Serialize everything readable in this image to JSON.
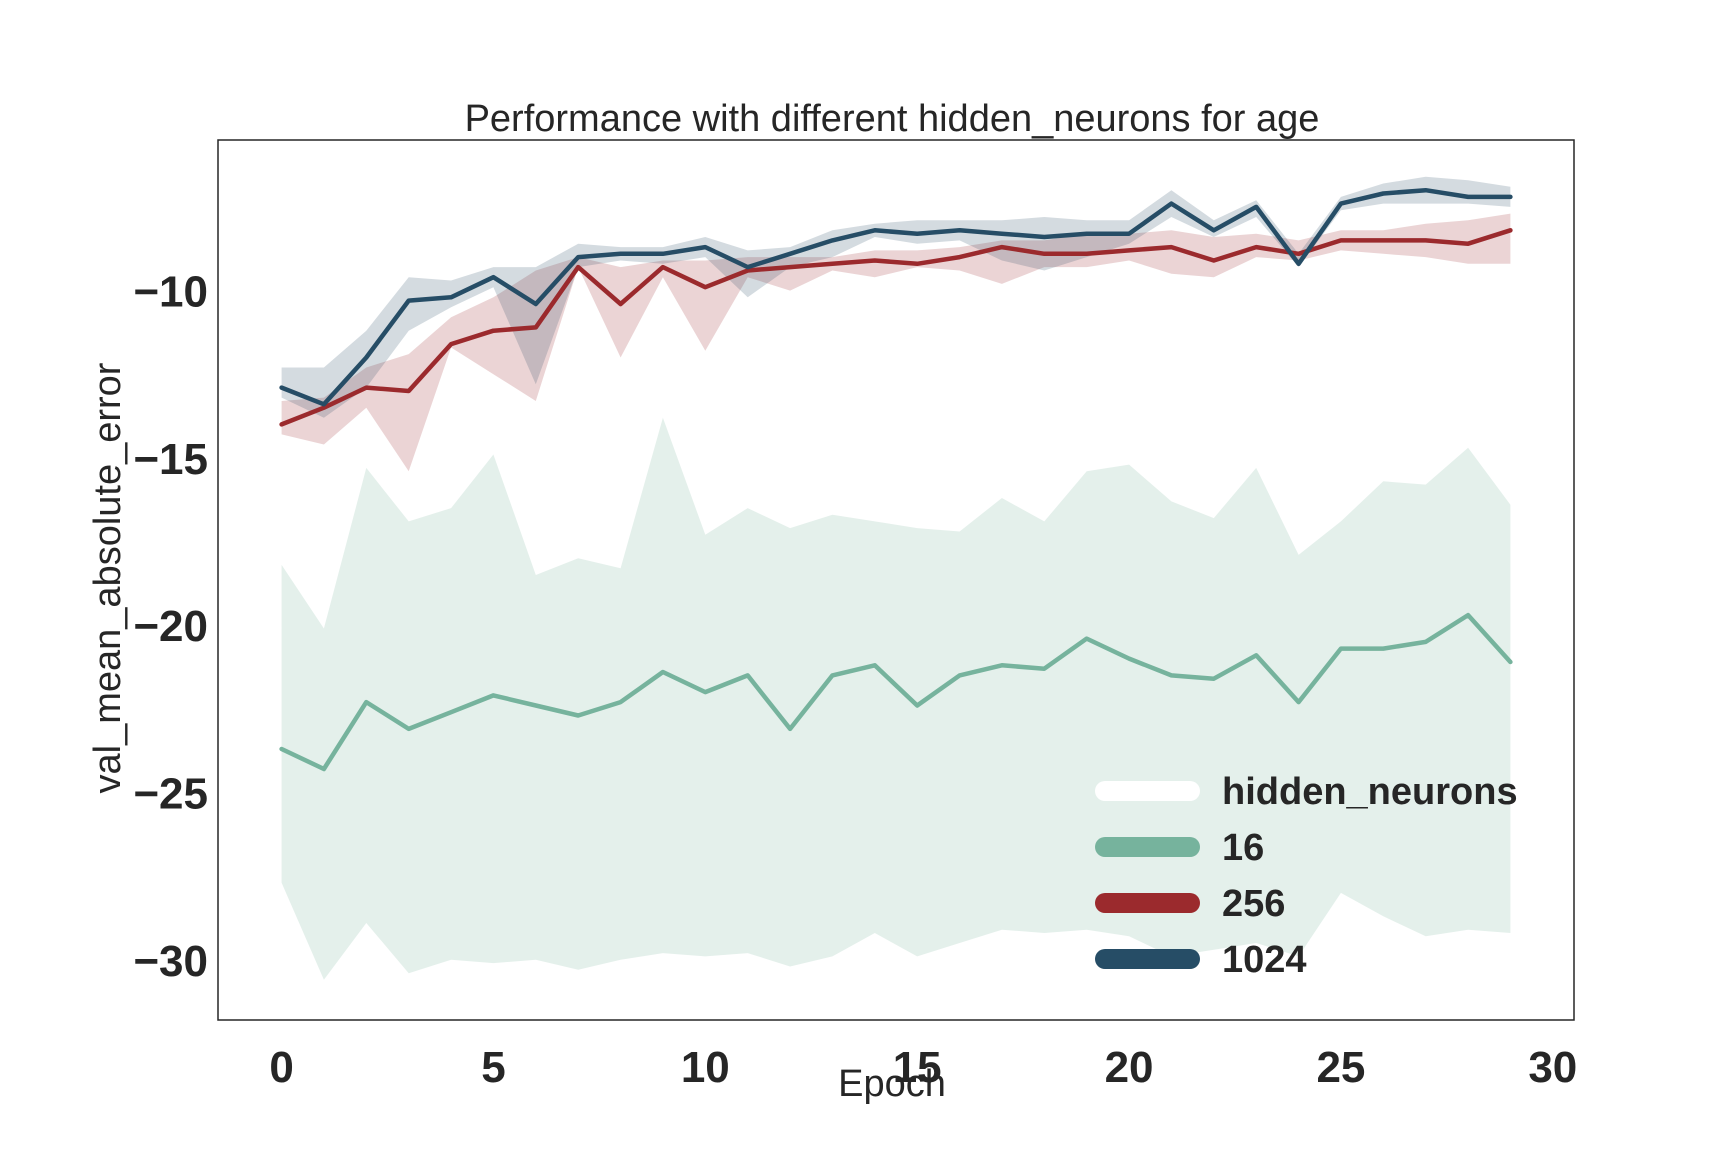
{
  "chart_data": {
    "type": "line",
    "title": "Performance with different hidden_neurons for age",
    "xlabel": "Epoch",
    "ylabel": "val_mean_absolute_error",
    "xlim": [
      -1.5,
      30.5
    ],
    "ylim": [
      -31.8,
      -5.5
    ],
    "xticks": [
      0,
      5,
      10,
      15,
      20,
      25,
      30
    ],
    "xtick_labels": [
      "0",
      "5",
      "10",
      "15",
      "20",
      "25",
      "30"
    ],
    "yticks": [
      -10,
      -15,
      -20,
      -25,
      -30
    ],
    "ytick_labels": [
      "−10",
      "−15",
      "−20",
      "−25",
      "−30"
    ],
    "grid": false,
    "legend": {
      "title": "hidden_neurons",
      "placement": "lower-right",
      "title_color": "#ffffff"
    },
    "x": [
      0,
      1,
      2,
      3,
      4,
      5,
      6,
      7,
      8,
      9,
      10,
      11,
      12,
      13,
      14,
      15,
      16,
      17,
      18,
      19,
      20,
      21,
      22,
      23,
      24,
      25,
      26,
      27,
      28,
      29
    ],
    "series": [
      {
        "name": "16",
        "color": "#76b39d",
        "values": [
          -23.7,
          -24.3,
          -22.3,
          -23.1,
          -22.6,
          -22.1,
          -22.4,
          -22.7,
          -22.3,
          -21.4,
          -22.0,
          -21.5,
          -23.1,
          -21.5,
          -21.2,
          -22.4,
          -21.5,
          -21.2,
          -21.3,
          -20.4,
          -21.0,
          -21.5,
          -21.6,
          -20.9,
          -22.3,
          -20.7,
          -20.7,
          -20.5,
          -19.7,
          -21.1
        ],
        "upper": [
          -18.2,
          -20.1,
          -15.3,
          -16.9,
          -16.5,
          -14.9,
          -18.5,
          -18.0,
          -18.3,
          -13.8,
          -17.3,
          -16.5,
          -17.1,
          -16.7,
          -16.9,
          -17.1,
          -17.2,
          -16.2,
          -16.9,
          -15.4,
          -15.2,
          -16.3,
          -16.8,
          -15.3,
          -17.9,
          -16.9,
          -15.7,
          -15.8,
          -14.7,
          -16.4
        ],
        "lower": [
          -27.7,
          -30.6,
          -28.9,
          -30.4,
          -30.0,
          -30.1,
          -30.0,
          -30.3,
          -30.0,
          -29.8,
          -29.9,
          -29.8,
          -30.2,
          -29.9,
          -29.2,
          -29.9,
          -29.5,
          -29.1,
          -29.2,
          -29.1,
          -29.3,
          -29.9,
          -29.7,
          -29.5,
          -29.9,
          -28.0,
          -28.7,
          -29.3,
          -29.1,
          -29.2
        ]
      },
      {
        "name": "256",
        "color": "#9b2a2d",
        "values": [
          -14.0,
          -13.5,
          -12.9,
          -13.0,
          -11.6,
          -11.2,
          -11.1,
          -9.3,
          -10.4,
          -9.3,
          -9.9,
          -9.4,
          -9.3,
          -9.2,
          -9.1,
          -9.2,
          -9.0,
          -8.7,
          -8.9,
          -8.9,
          -8.8,
          -8.7,
          -9.1,
          -8.7,
          -8.9,
          -8.5,
          -8.5,
          -8.5,
          -8.6,
          -8.2
        ],
        "upper": [
          -13.3,
          -13.2,
          -12.3,
          -11.9,
          -10.8,
          -10.2,
          -9.4,
          -9.0,
          -9.3,
          -9.1,
          -9.1,
          -9.0,
          -9.0,
          -9.0,
          -8.8,
          -8.8,
          -8.7,
          -8.5,
          -8.5,
          -8.3,
          -8.3,
          -8.2,
          -8.4,
          -8.3,
          -8.5,
          -8.2,
          -8.2,
          -8.0,
          -7.9,
          -7.7
        ],
        "lower": [
          -14.3,
          -14.6,
          -13.5,
          -15.4,
          -11.7,
          -12.5,
          -13.3,
          -9.3,
          -12.0,
          -9.6,
          -11.8,
          -9.6,
          -10.0,
          -9.4,
          -9.6,
          -9.3,
          -9.4,
          -9.8,
          -9.3,
          -9.3,
          -9.1,
          -9.5,
          -9.6,
          -9.0,
          -9.1,
          -8.8,
          -8.9,
          -9.0,
          -9.2,
          -9.2
        ]
      },
      {
        "name": "1024",
        "color": "#264d66",
        "values": [
          -12.9,
          -13.4,
          -12.0,
          -10.3,
          -10.2,
          -9.6,
          -10.4,
          -9.0,
          -8.9,
          -8.9,
          -8.7,
          -9.3,
          -8.9,
          -8.5,
          -8.2,
          -8.3,
          -8.2,
          -8.3,
          -8.4,
          -8.3,
          -8.3,
          -7.4,
          -8.2,
          -7.5,
          -9.2,
          -7.4,
          -7.1,
          -7.0,
          -7.2,
          -7.2
        ],
        "upper": [
          -12.3,
          -12.3,
          -11.2,
          -9.6,
          -9.7,
          -9.3,
          -9.3,
          -8.6,
          -8.7,
          -8.7,
          -8.4,
          -8.8,
          -8.7,
          -8.2,
          -8.0,
          -7.9,
          -7.9,
          -7.9,
          -7.8,
          -7.9,
          -7.9,
          -7.0,
          -7.9,
          -7.3,
          -8.9,
          -7.2,
          -6.8,
          -6.6,
          -6.7,
          -6.9
        ],
        "lower": [
          -13.2,
          -13.8,
          -12.9,
          -11.2,
          -10.5,
          -9.9,
          -12.8,
          -9.3,
          -9.1,
          -9.2,
          -9.0,
          -10.2,
          -9.3,
          -9.0,
          -8.4,
          -8.6,
          -8.5,
          -9.1,
          -9.4,
          -9.0,
          -8.6,
          -7.8,
          -8.4,
          -7.8,
          -9.3,
          -7.6,
          -7.4,
          -7.4,
          -7.4,
          -7.5
        ]
      }
    ]
  }
}
